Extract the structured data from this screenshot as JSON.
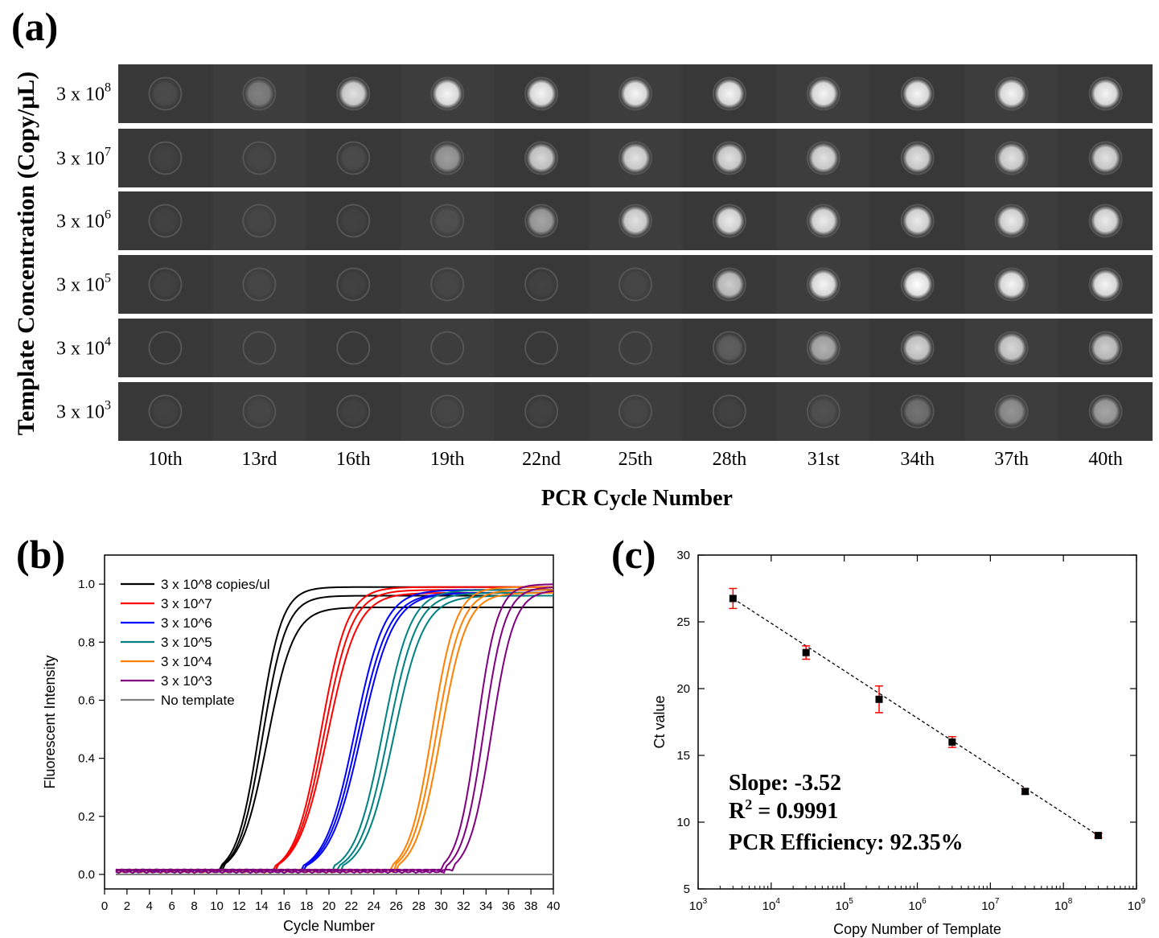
{
  "panel_labels": {
    "a": "(a)",
    "b": "(b)",
    "c": "(c)"
  },
  "panel_a": {
    "ylabel": "Template Concentration (Copy/μL)",
    "xlabel": "PCR Cycle Number",
    "rows": [
      {
        "base": "3 x 10",
        "exp": "8"
      },
      {
        "base": "3 x 10",
        "exp": "7"
      },
      {
        "base": "3 x 10",
        "exp": "6"
      },
      {
        "base": "3 x 10",
        "exp": "5"
      },
      {
        "base": "3 x 10",
        "exp": "4"
      },
      {
        "base": "3 x 10",
        "exp": "3"
      }
    ],
    "columns": [
      "10th",
      "13rd",
      "16th",
      "19th",
      "22nd",
      "25th",
      "28th",
      "31st",
      "34th",
      "37th",
      "40th"
    ],
    "brightness": [
      [
        0.1,
        0.35,
        0.85,
        0.95,
        0.95,
        0.95,
        0.95,
        0.95,
        0.95,
        0.95,
        0.95
      ],
      [
        0.05,
        0.05,
        0.1,
        0.5,
        0.8,
        0.85,
        0.85,
        0.85,
        0.85,
        0.85,
        0.85
      ],
      [
        0.05,
        0.05,
        0.05,
        0.1,
        0.55,
        0.85,
        0.9,
        0.9,
        0.9,
        0.9,
        0.9
      ],
      [
        0.05,
        0.05,
        0.05,
        0.05,
        0.05,
        0.05,
        0.75,
        0.95,
        1.0,
        0.95,
        0.95
      ],
      [
        0.0,
        0.0,
        0.0,
        0.0,
        0.0,
        0.0,
        0.2,
        0.6,
        0.8,
        0.8,
        0.75
      ],
      [
        0.05,
        0.05,
        0.05,
        0.05,
        0.05,
        0.05,
        0.05,
        0.1,
        0.3,
        0.45,
        0.55
      ]
    ]
  },
  "chart_data": [
    {
      "type": "line",
      "xlabel": "Cycle Number",
      "ylabel": "Fluorescent Intensity",
      "xlim": [
        0,
        40
      ],
      "ylim": [
        -0.05,
        1.1
      ],
      "xticks": [
        0,
        2,
        4,
        6,
        8,
        10,
        12,
        14,
        16,
        18,
        20,
        22,
        24,
        26,
        28,
        30,
        32,
        34,
        36,
        38,
        40
      ],
      "yticks": [
        0.0,
        0.2,
        0.4,
        0.6,
        0.8,
        1.0
      ],
      "legend_position": "top-left",
      "series": [
        {
          "name": "3 x 10^8 copies/ul",
          "color": "#000000",
          "replicates": [
            {
              "x0": 13.8,
              "k": 1.0,
              "top": 0.99
            },
            {
              "x0": 14.1,
              "k": 0.95,
              "top": 0.96
            },
            {
              "x0": 14.5,
              "k": 0.85,
              "top": 0.92
            }
          ]
        },
        {
          "name": "3 x 10^7",
          "color": "#ff0000",
          "replicates": [
            {
              "x0": 19.3,
              "k": 0.85,
              "top": 0.99
            },
            {
              "x0": 19.6,
              "k": 0.8,
              "top": 0.98
            },
            {
              "x0": 19.9,
              "k": 0.75,
              "top": 0.97
            }
          ]
        },
        {
          "name": "3 x 10^6",
          "color": "#0000ff",
          "replicates": [
            {
              "x0": 22.3,
              "k": 0.75,
              "top": 0.98
            },
            {
              "x0": 22.6,
              "k": 0.72,
              "top": 0.97
            },
            {
              "x0": 22.9,
              "k": 0.7,
              "top": 0.97
            }
          ]
        },
        {
          "name": "3 x 10^5",
          "color": "#008080",
          "replicates": [
            {
              "x0": 24.8,
              "k": 0.8,
              "top": 0.98
            },
            {
              "x0": 25.3,
              "k": 0.78,
              "top": 0.97
            },
            {
              "x0": 25.8,
              "k": 0.75,
              "top": 0.96
            }
          ]
        },
        {
          "name": "3 x 10^4",
          "color": "#ff8000",
          "replicates": [
            {
              "x0": 29.2,
              "k": 0.95,
              "top": 0.99
            },
            {
              "x0": 29.6,
              "k": 0.9,
              "top": 0.98
            },
            {
              "x0": 30.0,
              "k": 0.88,
              "top": 0.97
            }
          ]
        },
        {
          "name": "3 x 10^3",
          "color": "#800080",
          "replicates": [
            {
              "x0": 33.2,
              "k": 1.1,
              "top": 1.0
            },
            {
              "x0": 33.8,
              "k": 1.05,
              "top": 0.99
            },
            {
              "x0": 34.5,
              "k": 1.0,
              "top": 0.98
            }
          ]
        },
        {
          "name": "No template",
          "color": "#808080",
          "values": [
            [
              1,
              0.0
            ],
            [
              40,
              0.0
            ]
          ]
        }
      ]
    },
    {
      "type": "scatter",
      "xlabel": "Copy Number of Template",
      "ylabel": "Ct value",
      "xscale": "log",
      "xlim": [
        1000,
        1000000000
      ],
      "ylim": [
        5,
        30
      ],
      "xticks": [
        3,
        4,
        5,
        6,
        7,
        8,
        9
      ],
      "yticks": [
        5,
        10,
        15,
        20,
        25,
        30
      ],
      "points": [
        {
          "x": 3000,
          "y": 26.75,
          "err": 0.75
        },
        {
          "x": 30000,
          "y": 22.7,
          "err": 0.5
        },
        {
          "x": 300000,
          "y": 19.2,
          "err": 1.0
        },
        {
          "x": 3000000,
          "y": 16.0,
          "err": 0.4
        },
        {
          "x": 30000000,
          "y": 12.3,
          "err": 0.2
        },
        {
          "x": 300000000,
          "y": 9.0,
          "err": 0.15
        }
      ],
      "fit": {
        "from": [
          3000,
          26.75
        ],
        "to": [
          300000000,
          9.0
        ]
      },
      "annotations": {
        "slope": "Slope: -3.52",
        "r2_base": "R",
        "r2_exp": "2",
        "r2_value": " = 0.9991",
        "efficiency": "PCR Efficiency: 92.35%"
      }
    }
  ]
}
